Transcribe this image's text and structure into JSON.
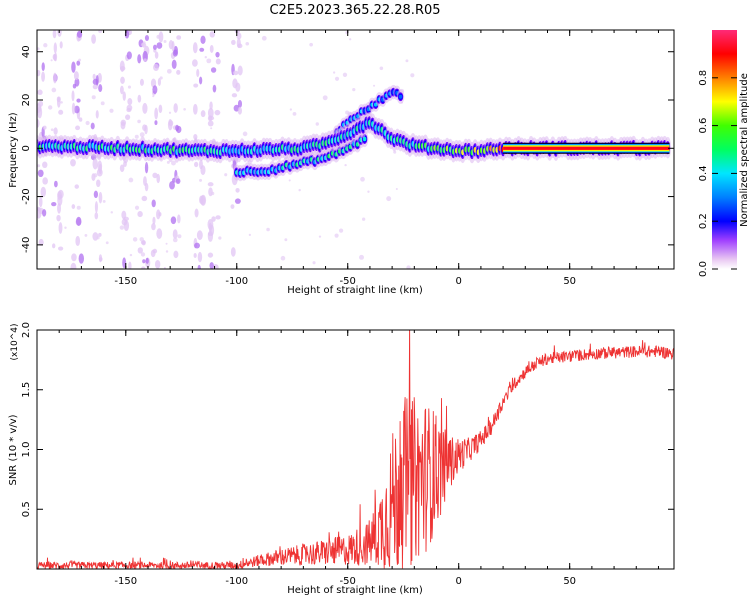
{
  "figure": {
    "title": "C2E5.2023.365.22.28.R05"
  },
  "chart_data": [
    {
      "type": "heatmap",
      "name": "spectrogram",
      "xlabel": "Height of straight line (km)",
      "ylabel": "Frequency (Hz)",
      "xlim": [
        -190,
        97
      ],
      "ylim": [
        -50,
        49
      ],
      "x_ticks": [
        -150,
        -100,
        -50,
        0,
        50
      ],
      "x_tick_labels": [
        "-150",
        "-100",
        "-50",
        "0",
        "50"
      ],
      "y_ticks": [
        -40,
        -20,
        0,
        20,
        40
      ],
      "y_tick_labels": [
        "-40",
        "-20",
        "0",
        "20",
        "40"
      ],
      "colorbar": {
        "label": "Normalized spectral amplitude",
        "range": [
          0,
          1
        ],
        "ticks": [
          0.0,
          0.2,
          0.4,
          0.6,
          0.8
        ],
        "tick_labels": [
          "0.0",
          "0.2",
          "0.4",
          "0.6",
          "0.8"
        ],
        "colormap": [
          "#e9c8f2",
          "#8a00ff",
          "#0000ff",
          "#00e6ff",
          "#00ff00",
          "#ffff00",
          "#ff8000",
          "#ff0000",
          "#ff2a78"
        ]
      },
      "main_band": {
        "x": [
          -190,
          -150,
          -120,
          -100,
          -85,
          -70,
          -60,
          -50,
          -40,
          -30,
          -20,
          -10,
          0,
          10,
          20,
          50,
          95
        ],
        "freq": [
          1,
          0,
          -1,
          -1,
          -0.5,
          0,
          2,
          6,
          11,
          4,
          1,
          0,
          -1,
          -1,
          0,
          0,
          0
        ],
        "amplitude": [
          0.45,
          0.45,
          0.45,
          0.42,
          0.42,
          0.42,
          0.42,
          0.4,
          0.38,
          0.4,
          0.45,
          0.55,
          0.6,
          0.65,
          0.82,
          0.85,
          0.85
        ]
      },
      "secondary_band": {
        "x": [
          -100,
          -85,
          -70,
          -60,
          -50,
          -42
        ],
        "freq": [
          -10,
          -9,
          -6,
          -4,
          0,
          4
        ],
        "amplitude": [
          0.35,
          0.38,
          0.4,
          0.42,
          0.45,
          0.4
        ]
      },
      "upper_branch": {
        "x": [
          -55,
          -45,
          -38,
          -30,
          -25
        ],
        "freq": [
          7,
          14,
          18,
          24,
          20
        ],
        "amplitude": [
          0.3,
          0.35,
          0.3,
          0.25,
          0.2
        ]
      }
    },
    {
      "type": "line",
      "name": "snr",
      "xlabel": "Height of straight line (km)",
      "ylabel": "SNR (10 * v/v)",
      "y_multiplier": "(x10^4)",
      "xlim": [
        -190,
        97
      ],
      "ylim": [
        0,
        2.0
      ],
      "x_ticks": [
        -150,
        -100,
        -50,
        0,
        50
      ],
      "x_tick_labels": [
        "-150",
        "-100",
        "-50",
        "0",
        "50"
      ],
      "y_ticks": [
        0.5,
        1.0,
        1.5,
        2.0
      ],
      "y_tick_labels": [
        "0.5",
        "1.0",
        "1.5",
        "2.0"
      ],
      "series_color": "#ee3333",
      "envelope": {
        "x": [
          -190,
          -100,
          -95,
          -90,
          -80,
          -70,
          -60,
          -50,
          -40,
          -35,
          -30,
          -25,
          -20,
          -15,
          -10,
          -5,
          0,
          5,
          10,
          15,
          20,
          25,
          30,
          35,
          40,
          50,
          60,
          70,
          80,
          90,
          97
        ],
        "mean": [
          0.03,
          0.03,
          0.05,
          0.07,
          0.1,
          0.12,
          0.14,
          0.16,
          0.22,
          0.35,
          0.55,
          0.7,
          0.75,
          0.78,
          0.82,
          0.88,
          0.95,
          1.0,
          1.08,
          1.2,
          1.4,
          1.55,
          1.65,
          1.72,
          1.76,
          1.78,
          1.8,
          1.81,
          1.82,
          1.82,
          1.8
        ],
        "noise": [
          0.03,
          0.03,
          0.04,
          0.05,
          0.07,
          0.09,
          0.11,
          0.13,
          0.2,
          0.35,
          0.6,
          0.75,
          0.7,
          0.65,
          0.5,
          0.25,
          0.15,
          0.1,
          0.08,
          0.07,
          0.06,
          0.05,
          0.05,
          0.05,
          0.05,
          0.05,
          0.05,
          0.05,
          0.05,
          0.05,
          0.05
        ]
      }
    }
  ]
}
